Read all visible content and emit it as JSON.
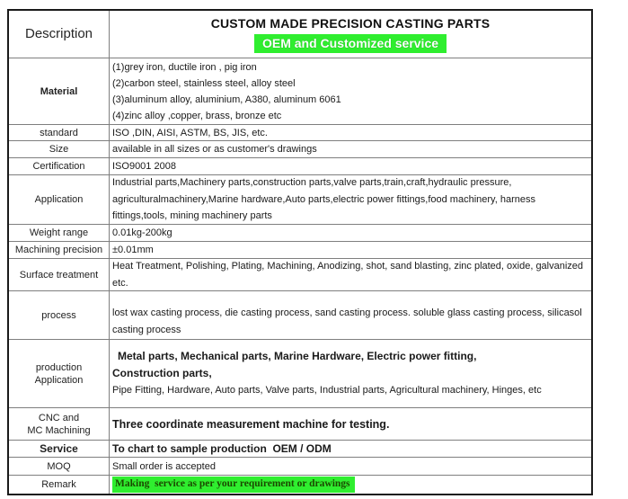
{
  "rows": {
    "description": {
      "label": "Description",
      "title": "CUSTOM MADE PRECISION CASTING PARTS",
      "subtitle": "OEM and Customized service"
    },
    "material": {
      "label": "Material",
      "lines": [
        "(1)grey iron, ductile iron , pig iron",
        "(2)carbon steel, stainless steel, alloy steel",
        "(3)aluminum alloy, aluminium, A380, aluminum 6061",
        "(4)zinc alloy ,copper, brass, bronze etc"
      ]
    },
    "standard": {
      "label": "standard",
      "value": "ISO ,DIN, AISI, ASTM, BS, JIS, etc."
    },
    "size": {
      "label": "Size",
      "value": "available in all sizes or as customer's drawings"
    },
    "certification": {
      "label": "Certification",
      "value": "ISO9001 2008"
    },
    "application": {
      "label": "Application",
      "value": "Industrial parts,Machinery parts,construction parts,valve parts,train,craft,hydraulic pressure, agriculturalmachinery,Marine hardware,Auto parts,electric power fittings,food machinery, harness fittings,tools, mining machinery parts"
    },
    "weight_range": {
      "label": "Weight range",
      "value": "0.01kg-200kg"
    },
    "machining_precision": {
      "label": "Machining precision",
      "value": "±0.01mm"
    },
    "surface_treatment": {
      "label": "Surface treatment",
      "value": "Heat Treatment, Polishing, Plating, Machining, Anodizing, shot, sand blasting, zinc plated, oxide, galvanized etc."
    },
    "process": {
      "label": "process",
      "value": "lost wax casting process, die casting process, sand casting process. soluble glass casting process, silicasol casting process"
    },
    "production_application": {
      "label_lines": [
        "production",
        "Application"
      ],
      "bold_lines": [
        "Metal parts, Mechanical parts, Marine Hardware, Electric power fitting,",
        "Construction parts,"
      ],
      "value": "Pipe Fitting, Hardware, Auto parts, Valve parts, Industrial parts, Agricultural machinery, Hinges, etc"
    },
    "cnc_machining": {
      "label_lines": [
        "CNC and",
        "MC Machining"
      ],
      "value": "Three coordinate measurement machine for testing."
    },
    "service": {
      "label": "Service",
      "value": "To chart to sample production  OEM / ODM"
    },
    "moq": {
      "label": "MOQ",
      "value": "Small order is accepted"
    },
    "remark": {
      "label": "Remark",
      "value": "Making  service as per your requirement or drawings"
    }
  },
  "colors": {
    "highlight_green": "#2fee2f",
    "subtitle_text": "#ffffff",
    "remark_text": "#1b4a00",
    "grid_line": "#7f7f7f",
    "outer_border": "#1a1a1a"
  }
}
